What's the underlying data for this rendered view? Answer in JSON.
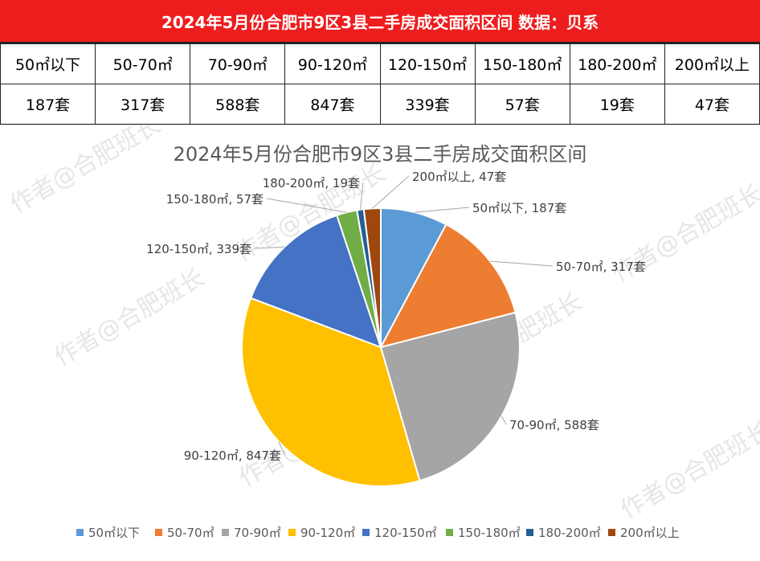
{
  "header": {
    "title": "2024年5月份合肥市9区3县二手房成交面积区间 数据：贝系"
  },
  "table": {
    "row1": [
      "50㎡以下",
      "50-70㎡",
      "70-90㎡",
      "90-120㎡",
      "120-150㎡",
      "150-180㎡",
      "180-200㎡",
      "200㎡以上"
    ],
    "row2": [
      "187套",
      "317套",
      "588套",
      "847套",
      "339套",
      "57套",
      "19套",
      "47套"
    ]
  },
  "watermark": "作者@合肥班长",
  "chart_data": {
    "type": "pie",
    "title": "2024年5月份合肥市9区3县二手房成交面积区间",
    "unit": "套",
    "categories": [
      "50㎡以下",
      "50-70㎡",
      "70-90㎡",
      "90-120㎡",
      "120-150㎡",
      "150-180㎡",
      "180-200㎡",
      "200㎡以上"
    ],
    "values": [
      187,
      317,
      588,
      847,
      339,
      57,
      19,
      47
    ],
    "colors": [
      "#5b9bd5",
      "#ed7d31",
      "#a5a5a5",
      "#ffc000",
      "#4472c4",
      "#70ad47",
      "#255e91",
      "#9e480e"
    ],
    "data_labels": [
      "50㎡以下, 187套",
      "50-70㎡, 317套",
      "70-90㎡, 588套",
      "90-120㎡, 847套",
      "120-150㎡, 339套",
      "150-180㎡, 57套",
      "180-200㎡, 19套",
      "200㎡以上, 47套"
    ],
    "legend_position": "bottom"
  }
}
